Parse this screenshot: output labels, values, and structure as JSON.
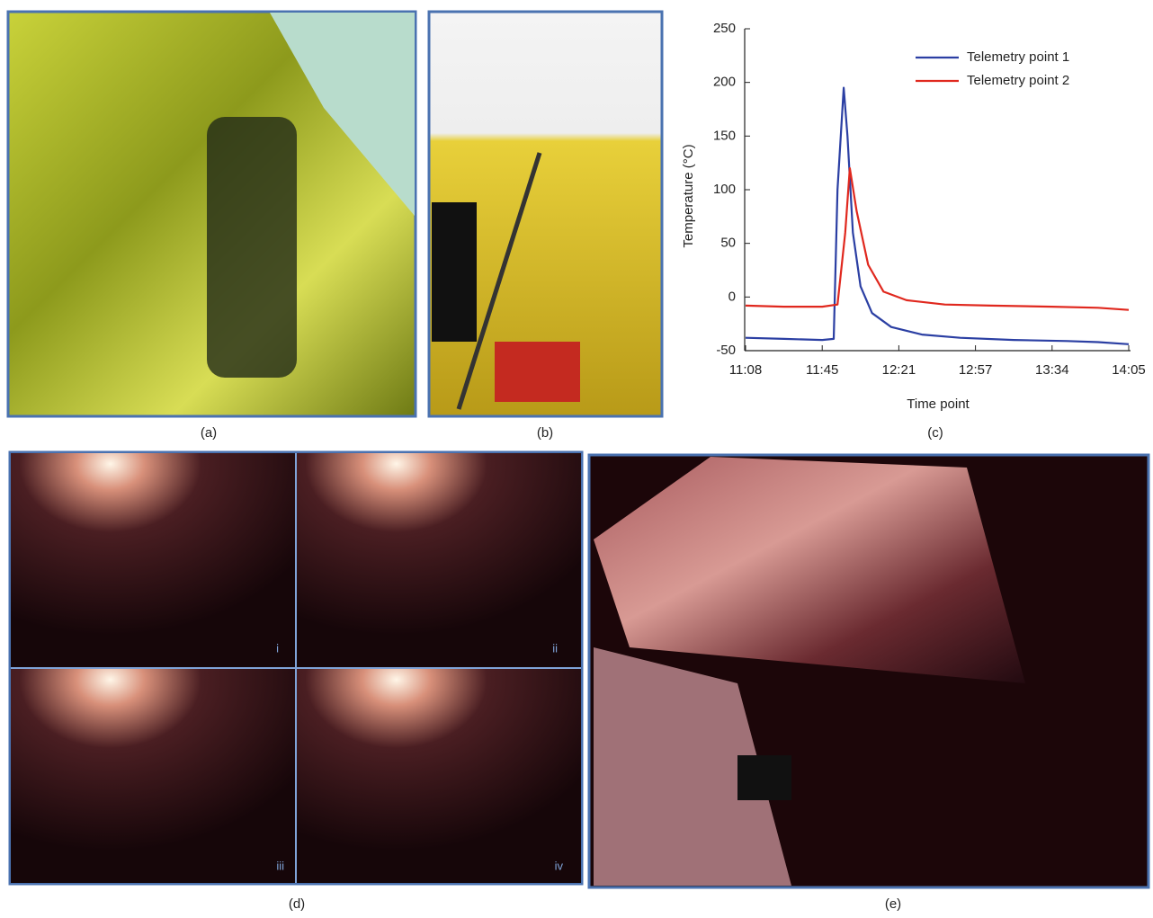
{
  "chart_data": {
    "type": "line",
    "x_label": "Time point",
    "y_label": "Temperature (°C)",
    "xlim": [
      0,
      5
    ],
    "xticks": [
      {
        "value": 0,
        "label": "11:08"
      },
      {
        "value": 1,
        "label": "11:45"
      },
      {
        "value": 2,
        "label": "12:21"
      },
      {
        "value": 3,
        "label": "12:57"
      },
      {
        "value": 4,
        "label": "13:34"
      },
      {
        "value": 5,
        "label": "14:05"
      }
    ],
    "ylim": [
      -50,
      250
    ],
    "yticks": [
      -50,
      0,
      50,
      100,
      150,
      200,
      250
    ],
    "legend": "upper right",
    "series": [
      {
        "name": "Telemetry point 1",
        "color": "#2b3fa3",
        "x": [
          0,
          0.5,
          1.0,
          1.15,
          1.2,
          1.28,
          1.33,
          1.4,
          1.5,
          1.65,
          1.9,
          2.3,
          2.8,
          3.5,
          4.2,
          4.6,
          5.0
        ],
        "values": [
          -38,
          -39,
          -40,
          -39,
          100,
          195,
          150,
          60,
          10,
          -15,
          -28,
          -35,
          -38,
          -40,
          -41,
          -42,
          -44
        ]
      },
      {
        "name": "Telemetry point 2",
        "color": "#e0281e",
        "x": [
          0,
          0.5,
          1.0,
          1.2,
          1.3,
          1.36,
          1.45,
          1.6,
          1.8,
          2.1,
          2.6,
          3.2,
          4.0,
          4.6,
          5.0
        ],
        "values": [
          -8,
          -9,
          -9,
          -7,
          60,
          120,
          80,
          30,
          5,
          -3,
          -7,
          -8,
          -9,
          -10,
          -12
        ]
      }
    ]
  },
  "panel_labels": [
    "(a)",
    "(b)",
    "(c)",
    "(d)",
    "(e)"
  ],
  "subpanel_labels": [
    "i",
    "ii",
    "iii",
    "iv"
  ]
}
